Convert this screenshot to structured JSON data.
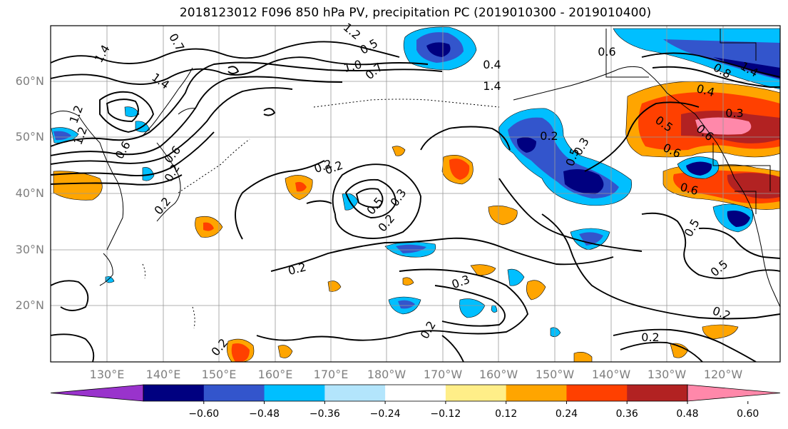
{
  "title": "2018123012 F096 850 hPa PV, precipitation PC (2019010300 - 2019010400)",
  "lat_labels": [
    "60°N",
    "50°N",
    "40°N",
    "30°N",
    "20°N"
  ],
  "lon_labels": [
    "130°E",
    "140°E",
    "150°E",
    "160°E",
    "170°E",
    "180°W",
    "170°W",
    "160°W",
    "150°W",
    "140°W",
    "130°W",
    "120°W"
  ],
  "contour_labels": [
    "1.4",
    "0.7",
    "1.4",
    "1.2",
    "1.0",
    "0.5",
    "0.7",
    "0.4",
    "1.4",
    "1.2",
    "1.2",
    "0.6",
    "0.6",
    "0.2",
    "0.2",
    "0.2",
    "0.5",
    "0.3",
    "0.2",
    "0.2",
    "0.3",
    "0.2",
    "0.3",
    "0.2",
    "0.5",
    "0.2",
    "0.6",
    "0.8",
    "1.4",
    "0.4",
    "0.3",
    "0.6",
    "0.6",
    "0.5",
    "0.5",
    "0.6",
    "0.5",
    "0.2",
    "0.2",
    "0.2"
  ],
  "colorbar": {
    "colors": [
      "#9933cc",
      "#000080",
      "#3355cc",
      "#00bfff",
      "#b3e5fc",
      "#ffffff",
      "#ffee88",
      "#ffa500",
      "#ff4000",
      "#b22222",
      "#ff88aa"
    ],
    "tick_labels": [
      "−0.60",
      "−0.48",
      "−0.36",
      "−0.24",
      "−0.12",
      "0.12",
      "0.24",
      "0.36",
      "0.48",
      "0.60"
    ]
  }
}
